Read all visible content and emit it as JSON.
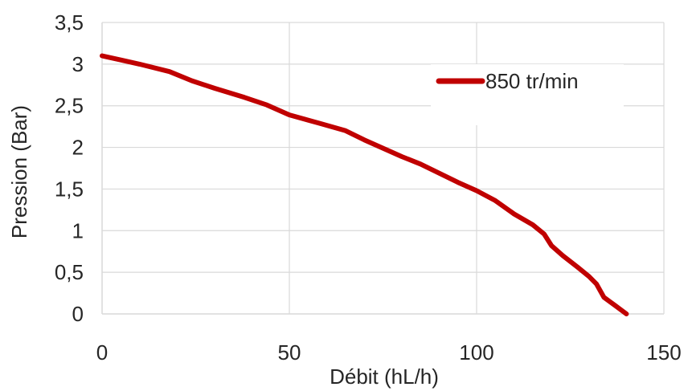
{
  "chart_data": {
    "type": "line",
    "xlabel": "Débit (hL/h)",
    "ylabel": "Pression (Bar)",
    "xlim": [
      0,
      150
    ],
    "ylim": [
      0,
      3.5
    ],
    "x_ticks": [
      0,
      50,
      100,
      150
    ],
    "y_ticks": [
      0,
      0.5,
      1,
      1.5,
      2,
      2.5,
      3,
      3.5
    ],
    "x_tick_labels": [
      "0",
      "50",
      "100",
      "150"
    ],
    "y_tick_labels": [
      "0",
      "0,5",
      "1",
      "1,5",
      "2",
      "2,5",
      "3",
      "3,5"
    ],
    "grid": true,
    "legend_position": "top-right",
    "series": [
      {
        "name": "850 tr/min",
        "color": "#c00000",
        "points": [
          {
            "x": 0,
            "y": 3.1
          },
          {
            "x": 5,
            "y": 3.05
          },
          {
            "x": 10,
            "y": 3.0
          },
          {
            "x": 18,
            "y": 2.91
          },
          {
            "x": 24,
            "y": 2.8
          },
          {
            "x": 30,
            "y": 2.71
          },
          {
            "x": 38,
            "y": 2.6
          },
          {
            "x": 44,
            "y": 2.51
          },
          {
            "x": 50,
            "y": 2.39
          },
          {
            "x": 58,
            "y": 2.29
          },
          {
            "x": 65,
            "y": 2.2
          },
          {
            "x": 70,
            "y": 2.09
          },
          {
            "x": 75,
            "y": 1.99
          },
          {
            "x": 80,
            "y": 1.89
          },
          {
            "x": 85,
            "y": 1.8
          },
          {
            "x": 90,
            "y": 1.69
          },
          {
            "x": 95,
            "y": 1.58
          },
          {
            "x": 100,
            "y": 1.48
          },
          {
            "x": 105,
            "y": 1.36
          },
          {
            "x": 110,
            "y": 1.2
          },
          {
            "x": 115,
            "y": 1.07
          },
          {
            "x": 118,
            "y": 0.96
          },
          {
            "x": 120,
            "y": 0.82
          },
          {
            "x": 123,
            "y": 0.7
          },
          {
            "x": 127,
            "y": 0.56
          },
          {
            "x": 130,
            "y": 0.45
          },
          {
            "x": 132,
            "y": 0.36
          },
          {
            "x": 134,
            "y": 0.2
          },
          {
            "x": 137,
            "y": 0.1
          },
          {
            "x": 140,
            "y": 0.0
          }
        ]
      }
    ]
  }
}
